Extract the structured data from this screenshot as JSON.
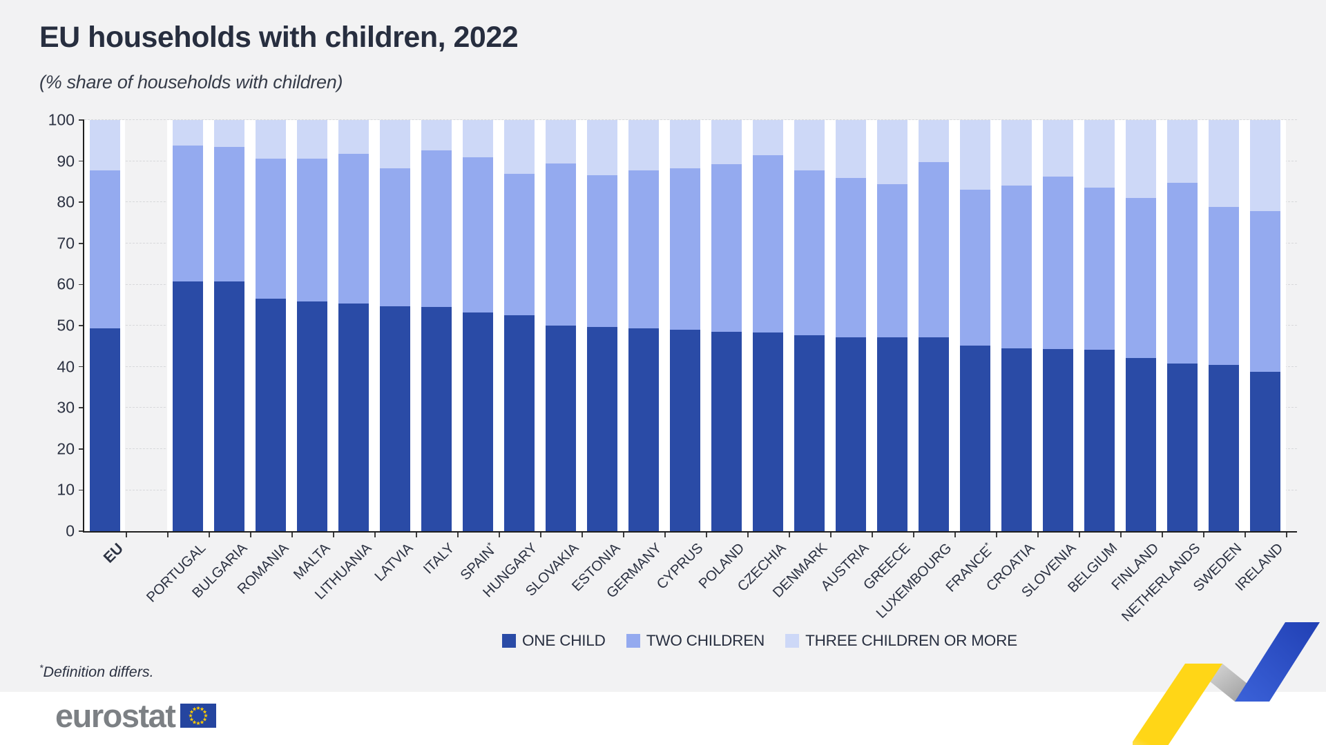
{
  "title": "EU households with children, 2022",
  "subtitle": "(%  share of households with children)",
  "footnote": {
    "mark": "*",
    "text": "Definition differs."
  },
  "logo": {
    "text": "eurostat"
  },
  "colors": {
    "one_child": "#2a4ba6",
    "two_children": "#94aaef",
    "three_or_more": "#cdd8f7",
    "page_bg": "#f2f2f3",
    "column_bg": "#ffffff",
    "gridline": "#d7d8da",
    "text": "#272e3f",
    "logo_gray": "#7c8084",
    "eu_flag_blue": "#25459f",
    "eu_star_yellow": "#ffcc00",
    "ribbon_yellow": "#ffd617",
    "ribbon_blue": "#2b50c6",
    "ribbon_gray": "#b9b9b9"
  },
  "chart_data": {
    "type": "bar",
    "stacked": true,
    "ylim": [
      0,
      100
    ],
    "yticks": [
      0,
      10,
      20,
      30,
      40,
      50,
      60,
      70,
      80,
      90,
      100
    ],
    "grid": "dashed-horizontal",
    "legend_position": "bottom-center",
    "categories": [
      {
        "label": "EU",
        "bold": true
      },
      {
        "label": "PORTUGAL"
      },
      {
        "label": "BULGARIA"
      },
      {
        "label": "ROMANIA"
      },
      {
        "label": "MALTA"
      },
      {
        "label": "LITHUANIA"
      },
      {
        "label": "LATVIA"
      },
      {
        "label": "ITALY"
      },
      {
        "label": "SPAIN",
        "asterisk": true
      },
      {
        "label": "HUNGARY"
      },
      {
        "label": "SLOVAKIA"
      },
      {
        "label": "ESTONIA"
      },
      {
        "label": "GERMANY"
      },
      {
        "label": "CYPRUS"
      },
      {
        "label": "POLAND"
      },
      {
        "label": "CZECHIA"
      },
      {
        "label": "DENMARK"
      },
      {
        "label": "AUSTRIA"
      },
      {
        "label": "GREECE"
      },
      {
        "label": "LUXEMBOURG"
      },
      {
        "label": "FRANCE",
        "asterisk": true
      },
      {
        "label": "CROATIA"
      },
      {
        "label": "SLOVENIA"
      },
      {
        "label": "BELGIUM"
      },
      {
        "label": "FINLAND"
      },
      {
        "label": "NETHERLANDS"
      },
      {
        "label": "SWEDEN"
      },
      {
        "label": "IRELAND"
      }
    ],
    "series": [
      {
        "name": "ONE CHILD",
        "color_key": "one_child",
        "values": [
          49.4,
          60.8,
          60.7,
          56.6,
          55.9,
          55.3,
          54.7,
          54.5,
          53.2,
          52.6,
          50.0,
          49.7,
          49.3,
          49.0,
          48.5,
          48.4,
          47.7,
          47.2,
          47.2,
          47.1,
          45.2,
          44.4,
          44.3,
          44.2,
          42.2,
          40.8,
          40.4,
          38.8
        ]
      },
      {
        "name": "TWO CHILDREN",
        "color_key": "two_children",
        "values": [
          38.3,
          33.0,
          32.8,
          34.0,
          34.7,
          36.4,
          33.6,
          38.1,
          37.8,
          34.3,
          39.4,
          36.9,
          38.4,
          39.3,
          40.7,
          43.0,
          40.1,
          38.7,
          37.2,
          42.7,
          37.8,
          39.7,
          41.9,
          39.3,
          38.9,
          44.0,
          38.5,
          39.0
        ]
      },
      {
        "name": "THREE CHILDREN OR MORE",
        "color_key": "three_or_more",
        "values": [
          12.3,
          6.2,
          6.5,
          9.4,
          9.4,
          8.3,
          11.7,
          7.4,
          9.0,
          13.1,
          10.6,
          13.4,
          12.3,
          11.7,
          10.8,
          8.6,
          12.2,
          14.1,
          15.6,
          10.2,
          17.0,
          15.9,
          13.8,
          16.5,
          18.9,
          15.2,
          21.1,
          22.2
        ]
      }
    ]
  }
}
